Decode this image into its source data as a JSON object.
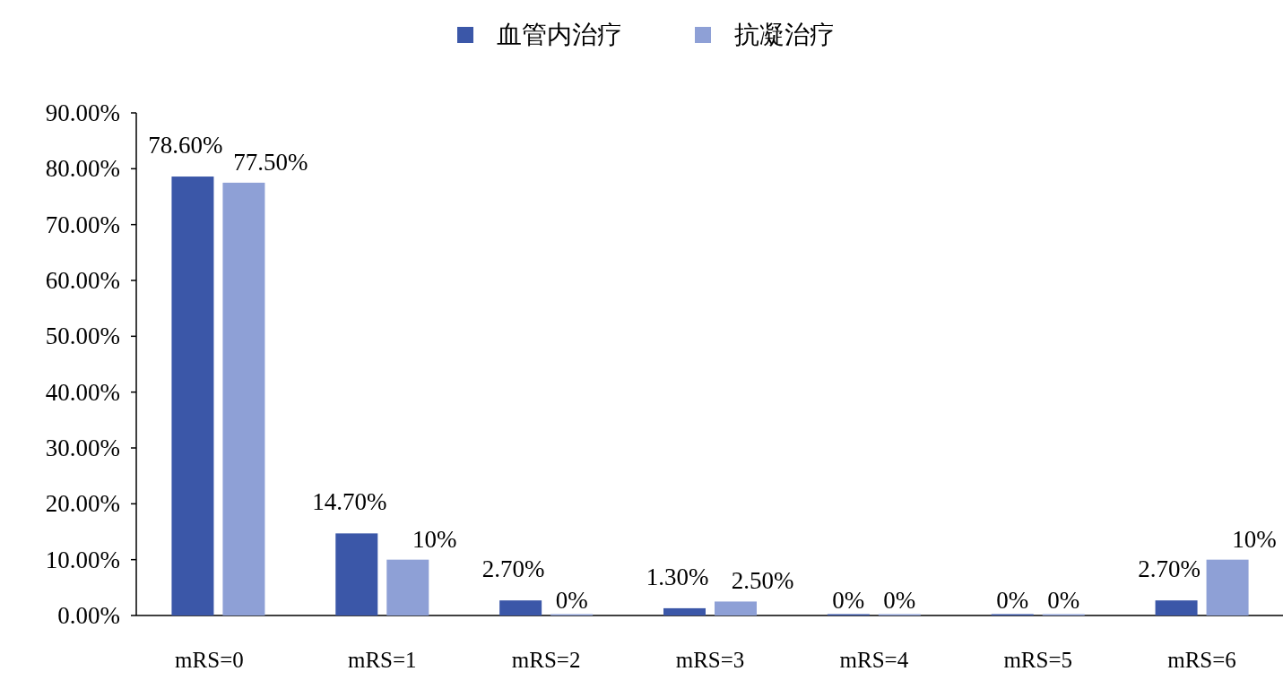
{
  "chart_data": {
    "type": "bar",
    "categories": [
      "mRS=0",
      "mRS=1",
      "mRS=2",
      "mRS=3",
      "mRS=4",
      "mRS=5",
      "mRS=6"
    ],
    "series": [
      {
        "name": "血管内治疗",
        "color": "#3b57a8",
        "values": [
          78.6,
          14.7,
          2.7,
          1.3,
          0,
          0,
          2.7
        ],
        "value_labels": [
          "78.60%",
          "14.70%",
          "2.70%",
          "1.30%",
          "0%",
          "0%",
          "2.70%"
        ]
      },
      {
        "name": "抗凝治疗",
        "color": "#8ea0d6",
        "values": [
          77.5,
          10,
          0,
          2.5,
          0,
          0,
          10
        ],
        "value_labels": [
          "77.50%",
          "10%",
          "0%",
          "2.50%",
          "0%",
          "0%",
          "10%"
        ]
      }
    ],
    "ylim": [
      0,
      90
    ],
    "yticks": [
      {
        "value": 0,
        "label": "0.00%"
      },
      {
        "value": 10,
        "label": "10.00%"
      },
      {
        "value": 20,
        "label": "20.00%"
      },
      {
        "value": 30,
        "label": "30.00%"
      },
      {
        "value": 40,
        "label": "40.00%"
      },
      {
        "value": 50,
        "label": "50.00%"
      },
      {
        "value": 60,
        "label": "60.00%"
      },
      {
        "value": 70,
        "label": "70.00%"
      },
      {
        "value": 80,
        "label": "80.00%"
      },
      {
        "value": 90,
        "label": "90.00%"
      }
    ],
    "grid": false,
    "legend": "top"
  }
}
